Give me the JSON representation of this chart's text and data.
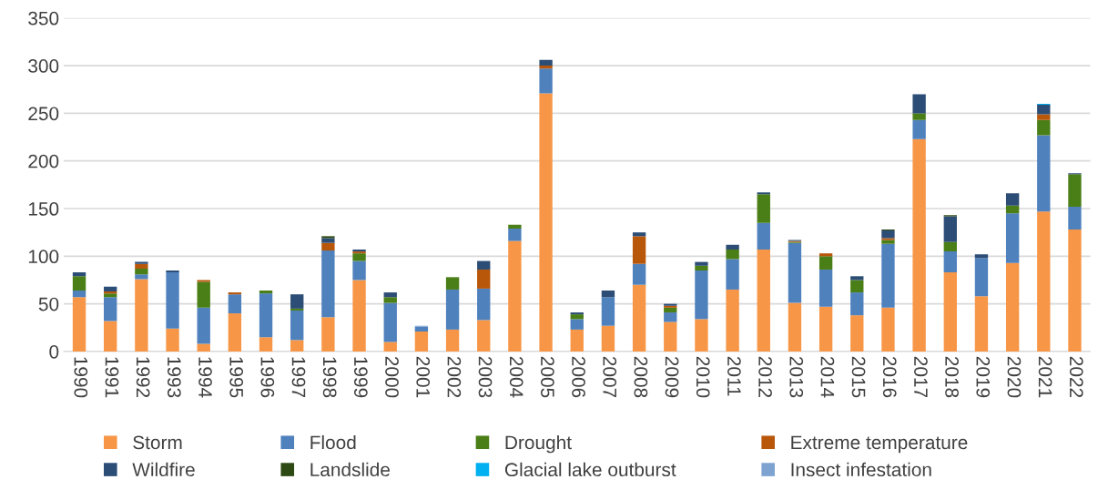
{
  "chart_data": {
    "type": "bar",
    "stacked": true,
    "categories": [
      "1990",
      "1991",
      "1992",
      "1993",
      "1994",
      "1995",
      "1996",
      "1997",
      "1998",
      "1999",
      "2000",
      "2001",
      "2002",
      "2003",
      "2004",
      "2005",
      "2006",
      "2007",
      "2008",
      "2009",
      "2010",
      "2011",
      "2012",
      "2013",
      "2014",
      "2015",
      "2016",
      "2017",
      "2018",
      "2019",
      "2020",
      "2021",
      "2022"
    ],
    "series": [
      {
        "name": "Storm",
        "color": "#f79646",
        "values": [
          57,
          32,
          76,
          24,
          8,
          40,
          15,
          12,
          36,
          75,
          10,
          21,
          23,
          33,
          116,
          271,
          23,
          27,
          70,
          31,
          34,
          65,
          107,
          51,
          47,
          38,
          46,
          223,
          83,
          58,
          93,
          147,
          128
        ]
      },
      {
        "name": "Flood",
        "color": "#4f81bd",
        "values": [
          7,
          25,
          5,
          59,
          38,
          20,
          46,
          31,
          70,
          20,
          41,
          5,
          42,
          33,
          13,
          26,
          11,
          30,
          22,
          10,
          51,
          32,
          28,
          63,
          39,
          24,
          67,
          20,
          22,
          40,
          52,
          80,
          24
        ]
      },
      {
        "name": "Drought",
        "color": "#4a7e16",
        "values": [
          15,
          4,
          6,
          null,
          27,
          null,
          3,
          2,
          null,
          8,
          6,
          null,
          13,
          null,
          4,
          null,
          5,
          null,
          null,
          5,
          5,
          10,
          30,
          1,
          14,
          13,
          4,
          7,
          10,
          null,
          8,
          16,
          34
        ]
      },
      {
        "name": "Extreme temperature",
        "color": "#b8560a",
        "values": [
          null,
          2,
          5,
          null,
          2,
          2,
          null,
          null,
          8,
          2,
          null,
          null,
          null,
          20,
          null,
          3,
          null,
          null,
          29,
          2,
          null,
          null,
          null,
          1,
          3,
          null,
          2,
          null,
          null,
          null,
          null,
          6,
          null
        ]
      },
      {
        "name": "Wildfire",
        "color": "#2c4d75",
        "values": [
          4,
          5,
          2,
          2,
          null,
          null,
          null,
          15,
          5,
          2,
          5,
          null,
          null,
          9,
          null,
          6,
          2,
          7,
          4,
          2,
          4,
          5,
          2,
          1,
          null,
          4,
          8,
          20,
          27,
          4,
          13,
          10,
          1
        ]
      },
      {
        "name": "Landslide",
        "color": "#2e4a14",
        "values": [
          null,
          null,
          null,
          null,
          null,
          null,
          null,
          null,
          2,
          null,
          null,
          null,
          null,
          null,
          null,
          null,
          null,
          null,
          null,
          null,
          null,
          null,
          null,
          null,
          null,
          null,
          1,
          null,
          1,
          null,
          null,
          null,
          null
        ]
      },
      {
        "name": "Glacial lake outburst",
        "color": "#00b0f0",
        "values": [
          null,
          null,
          null,
          null,
          null,
          null,
          null,
          null,
          null,
          null,
          null,
          null,
          null,
          null,
          null,
          null,
          null,
          null,
          null,
          null,
          null,
          null,
          null,
          null,
          null,
          null,
          null,
          null,
          null,
          null,
          null,
          1,
          null
        ]
      },
      {
        "name": "Insect infestation",
        "color": "#7fa3d1",
        "values": [
          null,
          null,
          null,
          null,
          null,
          null,
          null,
          null,
          null,
          null,
          null,
          1,
          null,
          null,
          null,
          null,
          null,
          null,
          null,
          null,
          null,
          null,
          null,
          null,
          null,
          null,
          null,
          null,
          null,
          null,
          null,
          null,
          null
        ]
      }
    ],
    "ylim": [
      0,
      350
    ],
    "yticks": [
      0,
      50,
      100,
      150,
      200,
      250,
      300,
      350
    ],
    "grid": "y",
    "legend": "bottom"
  }
}
